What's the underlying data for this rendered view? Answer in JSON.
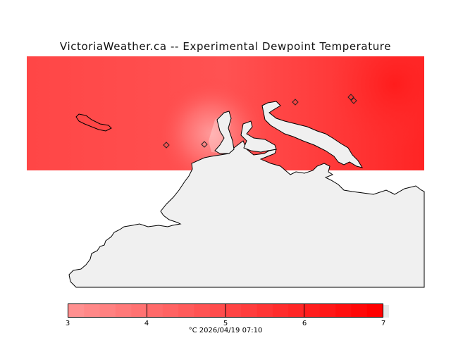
{
  "page": {
    "title": "VictoriaWeather.ca -- Experimental Dewpoint Temperature"
  },
  "map": {
    "field_color": "#ff4040",
    "land_color": "#f0f0f0",
    "water_color": "#ffffff",
    "coastline_color": "#000000",
    "station_markers": 5
  },
  "legend": {
    "unit_and_time": "°C  2026/04/19 07:10",
    "min": 3,
    "max": 7,
    "ticks": [
      "3",
      "4",
      "5",
      "6",
      "7"
    ],
    "color_low": "#ff9090",
    "color_high": "#ff0000",
    "steps": 20
  }
}
